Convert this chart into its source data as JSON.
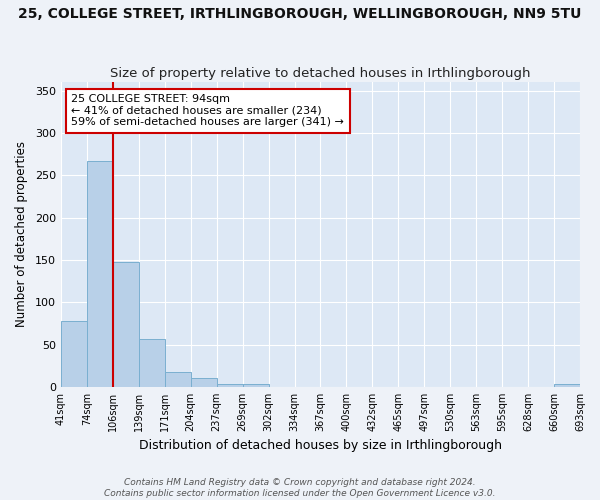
{
  "title": "25, COLLEGE STREET, IRTHLINGBOROUGH, WELLINGBOROUGH, NN9 5TU",
  "subtitle": "Size of property relative to detached houses in Irthlingborough",
  "xlabel": "Distribution of detached houses by size in Irthlingborough",
  "ylabel": "Number of detached properties",
  "bin_labels": [
    "41sqm",
    "74sqm",
    "106sqm",
    "139sqm",
    "171sqm",
    "204sqm",
    "237sqm",
    "269sqm",
    "302sqm",
    "334sqm",
    "367sqm",
    "400sqm",
    "432sqm",
    "465sqm",
    "497sqm",
    "530sqm",
    "563sqm",
    "595sqm",
    "628sqm",
    "660sqm",
    "693sqm"
  ],
  "bar_values": [
    78,
    267,
    148,
    57,
    18,
    10,
    4,
    4,
    0,
    0,
    0,
    0,
    0,
    0,
    0,
    0,
    0,
    0,
    0,
    3
  ],
  "bar_color": "#b8d0e8",
  "bar_edge_color": "#7aafd0",
  "vline_x": 1.5,
  "vline_color": "#cc0000",
  "annotation_line1": "25 COLLEGE STREET: 94sqm",
  "annotation_line2": "← 41% of detached houses are smaller (234)",
  "annotation_line3": "59% of semi-detached houses are larger (341) →",
  "annotation_box_color": "#ffffff",
  "annotation_box_edge": "#cc0000",
  "ylim": [
    0,
    360
  ],
  "yticks": [
    0,
    50,
    100,
    150,
    200,
    250,
    300,
    350
  ],
  "plot_bg_color": "#dde8f5",
  "fig_bg_color": "#eef2f8",
  "grid_color": "#ffffff",
  "footer": "Contains HM Land Registry data © Crown copyright and database right 2024.\nContains public sector information licensed under the Open Government Licence v3.0.",
  "title_fontsize": 10,
  "subtitle_fontsize": 9.5,
  "annotation_fontsize": 8,
  "ylabel_fontsize": 8.5,
  "xlabel_fontsize": 9
}
